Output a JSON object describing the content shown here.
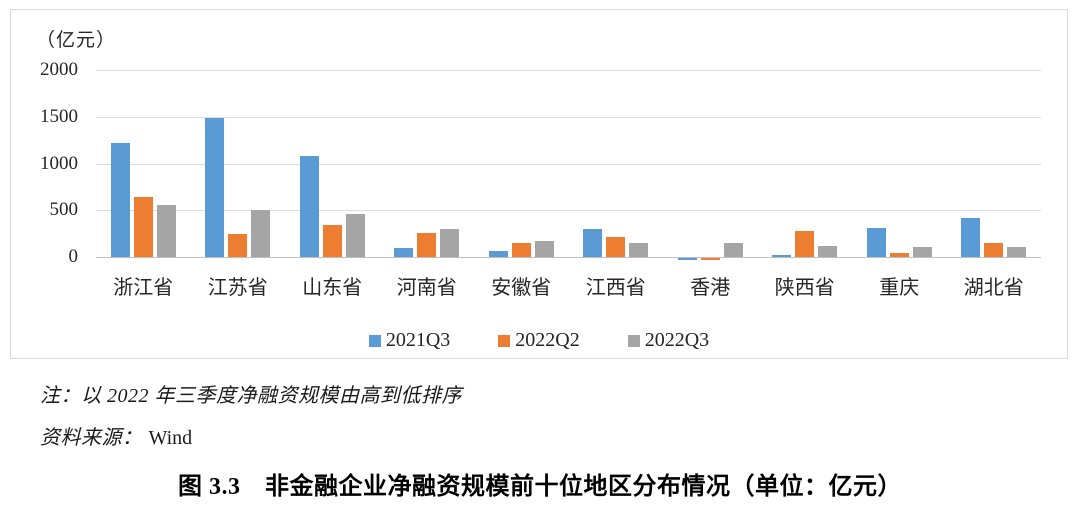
{
  "figure": {
    "unit_label": "（亿元）",
    "note": "注：以 2022 年三季度净融资规模由高到低排序",
    "source_label": "资料来源：",
    "source_value": "Wind",
    "caption": "图 3.3　非金融企业净融资规模前十位地区分布情况（单位：亿元）"
  },
  "chart_data": {
    "type": "bar",
    "title": "非金融企业净融资规模前十位地区分布情况",
    "unit": "亿元",
    "ylabel": "（亿元）",
    "xlabel": "",
    "categories": [
      "浙江省",
      "江苏省",
      "山东省",
      "河南省",
      "安徽省",
      "江西省",
      "香港",
      "陕西省",
      "重庆",
      "湖北省"
    ],
    "series": [
      {
        "name": "2021Q3",
        "color": "#5B9BD5",
        "values": [
          1220,
          1485,
          1075,
          100,
          65,
          300,
          -20,
          25,
          315,
          415
        ]
      },
      {
        "name": "2022Q2",
        "color": "#ED7D31",
        "values": [
          640,
          245,
          340,
          255,
          155,
          215,
          -15,
          280,
          40,
          150
        ]
      },
      {
        "name": "2022Q3",
        "color": "#A5A5A5",
        "values": [
          555,
          505,
          465,
          300,
          175,
          150,
          145,
          120,
          110,
          105
        ]
      }
    ],
    "y_ticks": [
      0,
      500,
      1000,
      1500,
      2000
    ],
    "ylim": [
      -60,
      2000
    ],
    "grid": true,
    "legend_position": "bottom",
    "sort_note": "sorted by 2022Q3 descending"
  }
}
